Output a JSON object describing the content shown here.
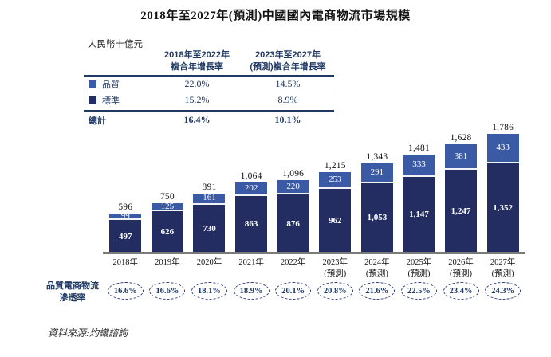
{
  "title": "2018年至2027年(預測)中國國內電商物流市場規模",
  "unit_label": "人民幣十億元",
  "colors": {
    "quality": "#3B5AA6",
    "standard": "#232D62",
    "navy_text": "#1F3864",
    "axis": "#7a7a7a",
    "total_label": "#121212",
    "oval_border": "#2b3a7e"
  },
  "cagr_table": {
    "col1_header": "2018年至2022年\n複合年增長率",
    "col2_header": "2023年至2027年\n(預測)複合年增長率",
    "rows": [
      {
        "label": "品質",
        "swatch": "quality",
        "col1": "22.0%",
        "col2": "14.5%"
      },
      {
        "label": "標準",
        "swatch": "standard",
        "col1": "15.2%",
        "col2": "8.9%"
      }
    ],
    "total_row": {
      "label": "總計",
      "col1": "16.4%",
      "col2": "10.1%"
    }
  },
  "chart_data": {
    "type": "bar",
    "stacked": true,
    "title": "2018年至2027年(預測)中國國內電商物流市場規模",
    "unit": "人民幣十億元",
    "grid": false,
    "legend_position": "top-left-table",
    "categories": [
      "2018年",
      "2019年",
      "2020年",
      "2021年",
      "2022年",
      "2023年\n(預測)",
      "2024年\n(預測)",
      "2025年\n(預測)",
      "2026年\n(預測)",
      "2027年\n(預測)"
    ],
    "series": [
      {
        "name": "標準",
        "color": "#232D62",
        "values": [
          497,
          626,
          730,
          863,
          876,
          962,
          1053,
          1147,
          1247,
          1352
        ],
        "values_fmt": [
          "497",
          "626",
          "730",
          "863",
          "876",
          "962",
          "1,053",
          "1,147",
          "1,247",
          "1,352"
        ]
      },
      {
        "name": "品質",
        "color": "#3B5AA6",
        "values": [
          99,
          125,
          161,
          202,
          220,
          253,
          291,
          333,
          381,
          433
        ],
        "values_fmt": [
          "99",
          "125",
          "161",
          "202",
          "220",
          "253",
          "291",
          "333",
          "381",
          "433"
        ]
      }
    ],
    "totals": [
      596,
      750,
      891,
      1064,
      1096,
      1215,
      1343,
      1481,
      1628,
      1786
    ],
    "totals_fmt": [
      "596",
      "750",
      "891",
      "1,064",
      "1,096",
      "1,215",
      "1,343",
      "1,481",
      "1,628",
      "1,786"
    ]
  },
  "penetration": {
    "label": "品質電商物流\n滲透率",
    "values": [
      "16.6%",
      "16.6%",
      "18.1%",
      "18.9%",
      "20.1%",
      "20.8%",
      "21.6%",
      "22.5%",
      "23.4%",
      "24.3%"
    ]
  },
  "source": "資料來源:灼識諮詢"
}
